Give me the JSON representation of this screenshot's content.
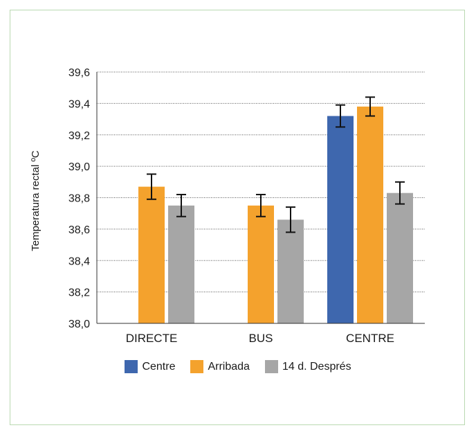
{
  "chart_data": {
    "type": "bar",
    "ylabel": "Temperatura rectal ºC",
    "ylim": [
      38.0,
      39.6
    ],
    "yticks": [
      "38,0",
      "38,2",
      "38,4",
      "38,6",
      "38,8",
      "39,0",
      "39,2",
      "39,4",
      "39,6"
    ],
    "categories": [
      "DIRECTE",
      "BUS",
      "CENTRE"
    ],
    "grid": true,
    "legend_position": "bottom",
    "series": [
      {
        "name": "Centre",
        "color": "#3e67ae",
        "values": [
          null,
          null,
          39.32
        ],
        "errors": [
          null,
          null,
          0.07
        ]
      },
      {
        "name": "Arribada",
        "color": "#f4a22d",
        "values": [
          38.87,
          38.75,
          39.38
        ],
        "errors": [
          0.08,
          0.07,
          0.06
        ]
      },
      {
        "name": "14 d. Després",
        "color": "#a6a6a6",
        "values": [
          38.75,
          38.66,
          38.83
        ],
        "errors": [
          0.07,
          0.08,
          0.07
        ]
      }
    ]
  }
}
